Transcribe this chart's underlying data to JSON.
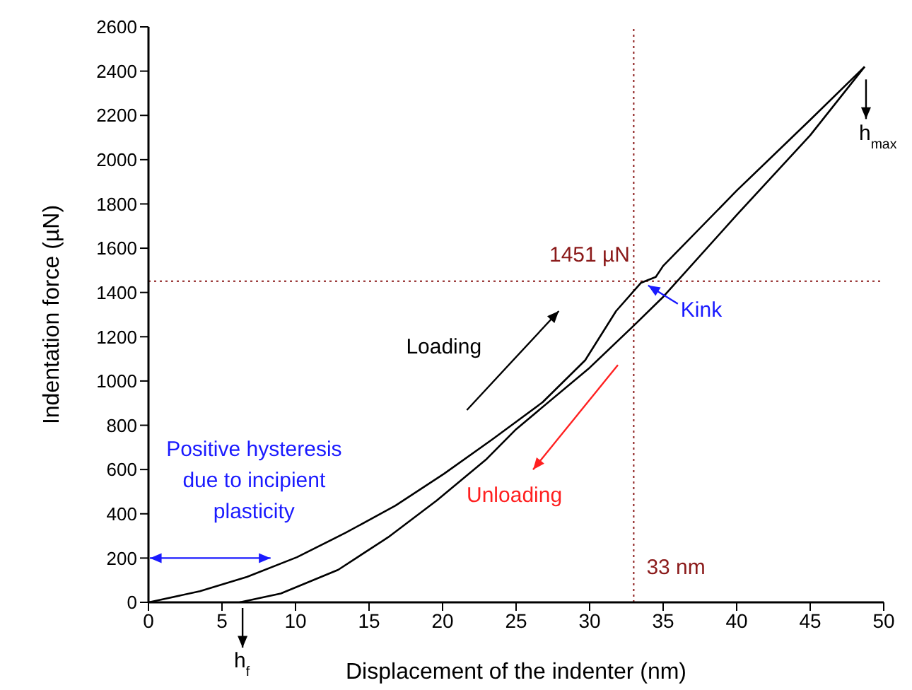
{
  "chart_data": {
    "type": "line",
    "xlabel": "Displacement of the indenter (nm)",
    "ylabel": "Indentation force (µN)",
    "xlim": [
      0,
      50
    ],
    "xticks": [
      0,
      5,
      10,
      15,
      20,
      25,
      30,
      35,
      40,
      45,
      50
    ],
    "ylim": [
      0,
      2600
    ],
    "yticks": [
      0,
      200,
      400,
      600,
      800,
      1000,
      1200,
      1400,
      1600,
      1800,
      2000,
      2200,
      2400,
      2600
    ],
    "grid": false,
    "legend": false,
    "marker": "none",
    "line_style": "solid",
    "series": [
      {
        "color": "#000000",
        "x": [
          0,
          3.5,
          6.7,
          10.1,
          13.4,
          16.8,
          20.1,
          23.4,
          26.8,
          29.7,
          31.8,
          33.5,
          34.5,
          35,
          40,
          45,
          48.7
        ],
        "values": [
          0,
          50,
          115,
          204,
          314,
          437,
          581,
          737,
          904,
          1094,
          1316,
          1444,
          1470,
          1520,
          1860,
          2180,
          2420
        ]
      },
      {
        "color": "#000000",
        "x": [
          6.2,
          9,
          12.9,
          16.3,
          19.6,
          23,
          25,
          30,
          33,
          35,
          40,
          45,
          48.7
        ],
        "values": [
          0,
          40,
          147,
          294,
          460,
          648,
          782,
          1060,
          1250,
          1380,
          1750,
          2110,
          2420
        ]
      }
    ],
    "ref_lines": [
      {
        "axis": "y",
        "value": 1451,
        "label": "1451 µN",
        "color": "#8b1a1a",
        "line_style": "dotted"
      },
      {
        "axis": "x",
        "value": 33,
        "label": "33 nm",
        "color": "#8b1a1a",
        "line_style": "dotted"
      }
    ],
    "annotations": [
      "Loading",
      "Unloading",
      {
        "text": "Kink",
        "x": 33.5,
        "y": 1451
      },
      "Positive hysteresis due to incipient plasticity",
      {
        "text": "h$_{max}$",
        "x": 48.7,
        "y": 2420
      },
      {
        "text": "h$_{f}$",
        "x": 6.4,
        "y": 0
      }
    ]
  }
}
